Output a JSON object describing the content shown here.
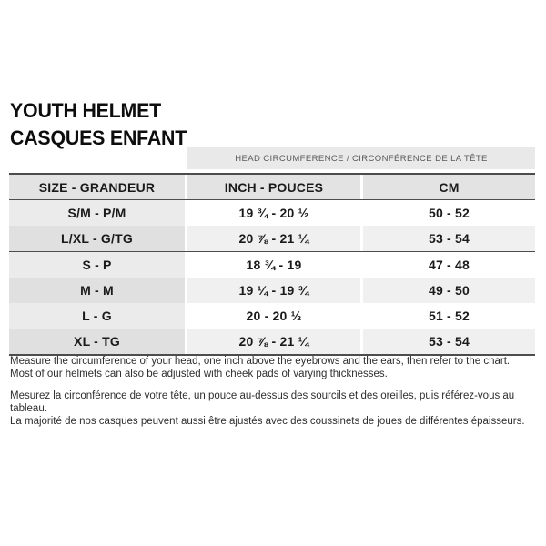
{
  "title": {
    "line1": "YOUTH HELMET",
    "line2": "CASQUES ENFANT"
  },
  "chart_data": {
    "type": "table",
    "title": "YOUTH HELMET / CASQUES ENFANT",
    "span_header": "HEAD CIRCUMFERENCE / CIRCONFÉRENCE DE LA TÊTE",
    "columns": [
      "SIZE - GRANDEUR",
      "INCH - POUCES",
      "CM"
    ],
    "groups": [
      {
        "rows": [
          {
            "size": "S/M - P/M",
            "inch": "19 ¾ - 20 ½",
            "cm": "50 - 52"
          },
          {
            "size": "L/XL - G/TG",
            "inch": "20 ⅞ - 21 ¼",
            "cm": "53 - 54"
          }
        ]
      },
      {
        "rows": [
          {
            "size": "S - P",
            "inch": "18 ¾ - 19",
            "cm": "47 - 48"
          },
          {
            "size": "M - M",
            "inch": "19 ¼ - 19 ¾",
            "cm": "49 - 50"
          },
          {
            "size": "L - G",
            "inch": "20 - 20 ½",
            "cm": "51 - 52"
          },
          {
            "size": "XL - TG",
            "inch": "20 ⅞ - 21 ¼",
            "cm": "53 - 54"
          }
        ]
      }
    ]
  },
  "notes": {
    "en": [
      "Measure the circumference of your head, one inch above the eyebrows and the ears, then refer to the chart.",
      "Most of our helmets can also be adjusted with cheek pads of varying thicknesses."
    ],
    "fr": [
      "Mesurez la circonférence de votre tête, un pouce au-dessus des sourcils et des oreilles, puis référez-vous au tableau.",
      "La majorité de nos casques peuvent aussi être ajustés avec des coussinets de joues de différentes épaisseurs."
    ]
  },
  "colors": {
    "border_dark": "#4d4d4d",
    "span_header_bg": "#e9e9e9",
    "header_bg": "#e3e3e3",
    "size_col_light": "#ebebeb",
    "size_col_shaded": "#e0e0e0",
    "row_light": "#ffffff",
    "row_shaded": "#f0f0f0",
    "text": "#1a1a1a"
  }
}
